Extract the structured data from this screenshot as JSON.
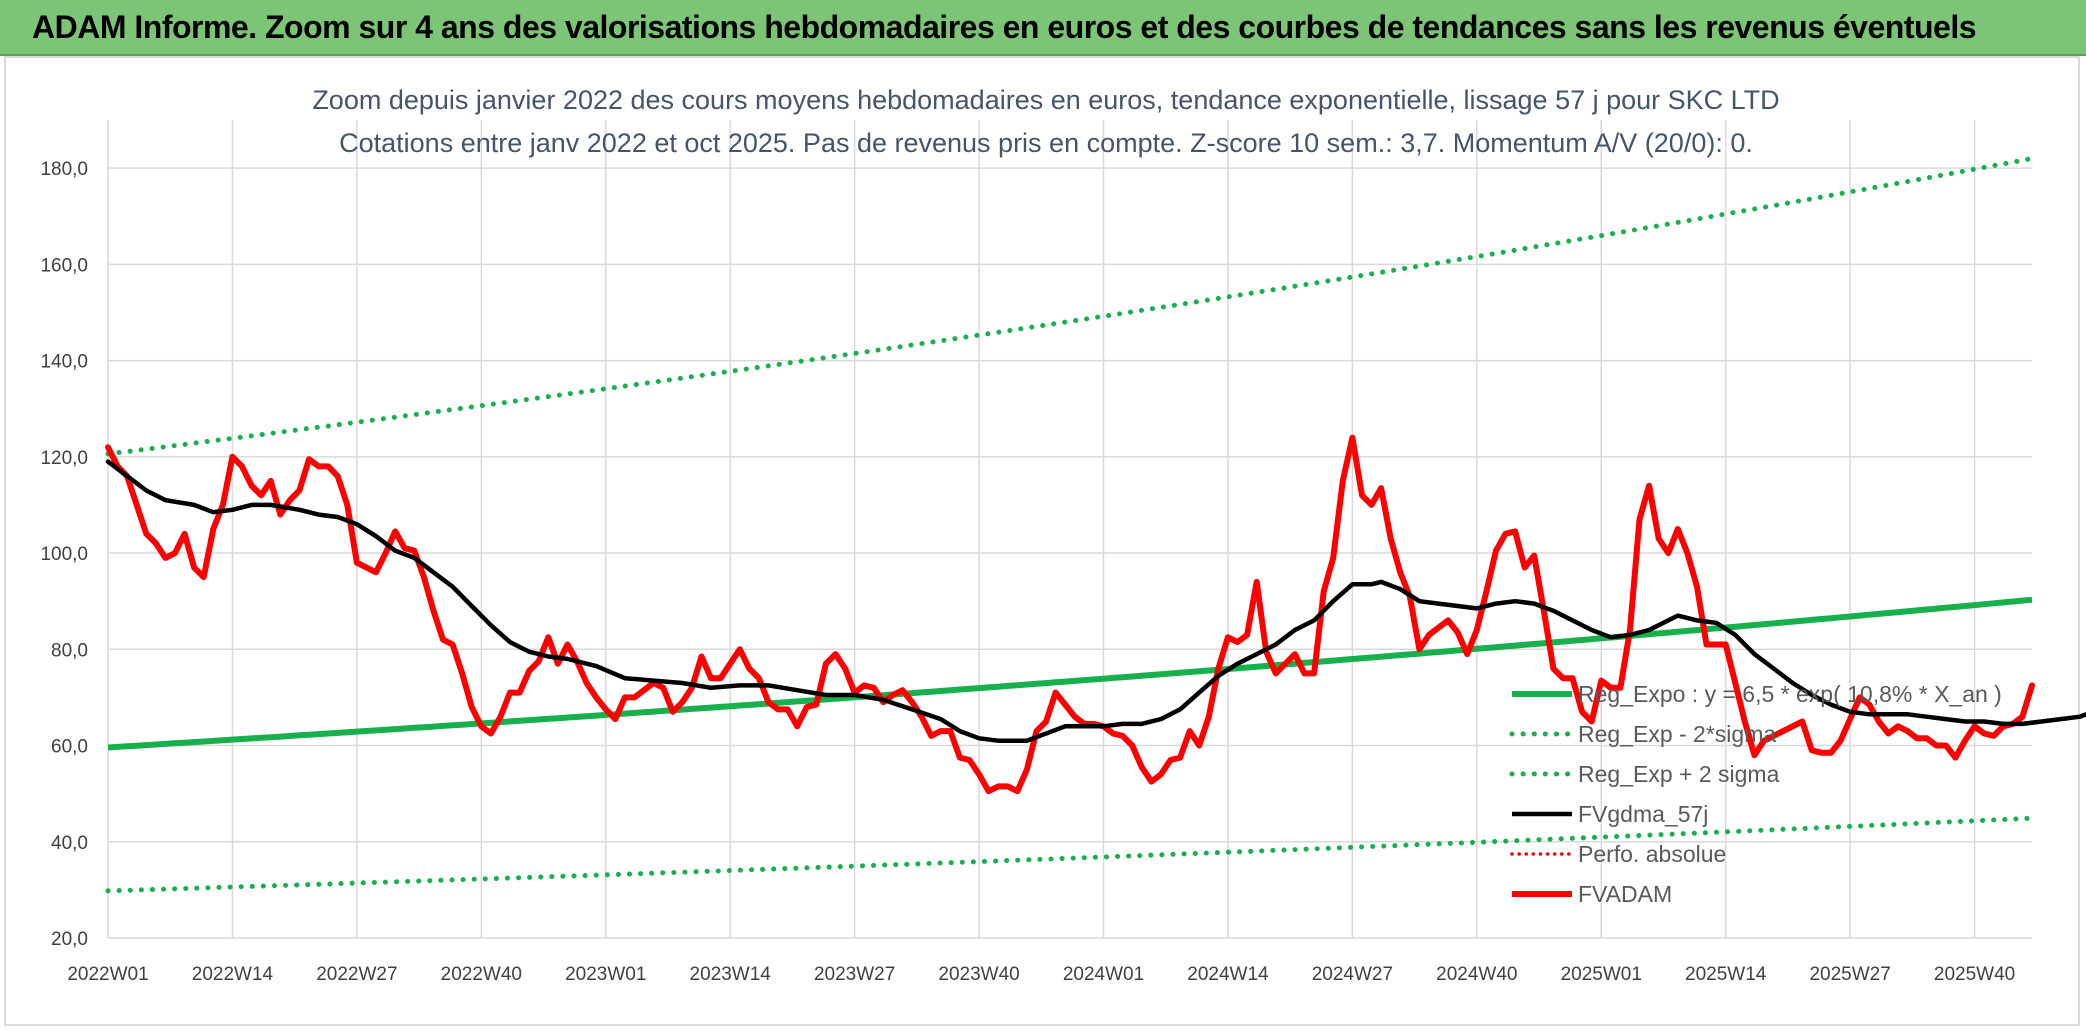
{
  "header": {
    "title": "ADAM Informe. Zoom sur 4 ans des valorisations hebdomadaires en euros et des courbes de tendances sans les revenus éventuels"
  },
  "colors": {
    "banner": "#7cc576",
    "green": "#17b04c",
    "black": "#000000",
    "red": "#ff0000"
  },
  "chart_data": {
    "type": "line",
    "title": "Zoom depuis janvier 2022 des cours moyens hebdomadaires en euros, tendance exponentielle, lissage 57 j pour SKC LTD",
    "subtitle": "Cotations entre janv 2022 et oct 2025. Pas de revenus pris en compte. Z-score 10 sem.: 3,7. Momentum A/V (20/0): 0.",
    "xlabel": "",
    "ylabel": "",
    "ylim": [
      20,
      190
    ],
    "yticks": [
      "20,0",
      "40,0",
      "60,0",
      "80,0",
      "100,0",
      "120,0",
      "140,0",
      "160,0",
      "180,0"
    ],
    "xticks": [
      "2022W01",
      "2022W14",
      "2022W27",
      "2022W40",
      "2023W01",
      "2023W14",
      "2023W27",
      "2023W40",
      "2024W01",
      "2024W14",
      "2024W27",
      "2024W40",
      "2025W01",
      "2025W14",
      "2025W27",
      "2025W40"
    ],
    "x_period": "weekly, 2022W01 to 2025W43",
    "grid": true,
    "legend_position": "bottom-right",
    "series": [
      {
        "name": "Reg_Expo : y = 6,5 * exp( 10,8% *  X_an )",
        "style": "solid-green",
        "y_start": 59.6,
        "y_end": 90.3
      },
      {
        "name": "Reg_Exp - 2*sigma",
        "style": "dotted-green",
        "y_start": 29.8,
        "y_end": 44.9
      },
      {
        "name": "Reg_Exp + 2 sigma",
        "style": "dotted-green",
        "y_start": 120.6,
        "y_end": 182.0
      },
      {
        "name": "FVgdma_57j",
        "style": "solid-black",
        "points": [
          [
            0,
            119
          ],
          [
            2,
            116
          ],
          [
            4,
            113
          ],
          [
            6,
            111
          ],
          [
            9,
            110
          ],
          [
            11,
            108.5
          ],
          [
            13,
            109
          ],
          [
            15,
            110
          ],
          [
            17,
            110
          ],
          [
            20,
            109
          ],
          [
            22,
            108
          ],
          [
            24,
            107.5
          ],
          [
            26,
            106
          ],
          [
            28,
            103.5
          ],
          [
            30,
            100.5
          ],
          [
            32,
            99
          ],
          [
            34,
            96
          ],
          [
            36,
            93
          ],
          [
            38,
            89
          ],
          [
            40,
            85
          ],
          [
            42,
            81.5
          ],
          [
            44,
            79.5
          ],
          [
            46,
            78.5
          ],
          [
            48,
            78
          ],
          [
            51,
            76.5
          ],
          [
            54,
            74
          ],
          [
            57,
            73.5
          ],
          [
            60,
            73
          ],
          [
            63,
            72
          ],
          [
            66,
            72.5
          ],
          [
            69,
            72.5
          ],
          [
            72,
            71.5
          ],
          [
            75,
            70.5
          ],
          [
            78,
            70.5
          ],
          [
            81,
            69.5
          ],
          [
            84,
            67.5
          ],
          [
            87,
            65.5
          ],
          [
            89,
            63
          ],
          [
            91,
            61.5
          ],
          [
            93,
            61
          ],
          [
            95,
            61
          ],
          [
            96,
            61
          ],
          [
            98,
            62.5
          ],
          [
            100,
            64
          ],
          [
            102,
            64
          ],
          [
            104,
            64
          ],
          [
            106,
            64.5
          ],
          [
            108,
            64.5
          ],
          [
            110,
            65.5
          ],
          [
            112,
            67.5
          ],
          [
            114,
            71
          ],
          [
            116,
            74.5
          ],
          [
            118,
            77
          ],
          [
            120,
            79
          ],
          [
            122,
            81
          ],
          [
            124,
            84
          ],
          [
            126,
            86
          ],
          [
            128,
            90
          ],
          [
            130,
            93.5
          ],
          [
            132,
            93.5
          ],
          [
            133,
            94
          ],
          [
            135,
            92.5
          ],
          [
            137,
            90
          ],
          [
            139,
            89.5
          ],
          [
            141,
            89
          ],
          [
            143,
            88.5
          ],
          [
            145,
            89.5
          ],
          [
            147,
            90
          ],
          [
            149,
            89.5
          ],
          [
            151,
            88
          ],
          [
            153,
            86
          ],
          [
            155,
            84
          ],
          [
            157,
            82.5
          ],
          [
            159,
            83
          ],
          [
            161,
            84
          ],
          [
            163,
            86
          ],
          [
            164,
            87
          ],
          [
            166,
            86
          ],
          [
            168,
            85.5
          ],
          [
            170,
            83
          ],
          [
            172,
            79
          ],
          [
            174,
            76
          ],
          [
            176,
            73
          ],
          [
            178,
            70.5
          ],
          [
            180,
            68.5
          ],
          [
            182,
            67
          ],
          [
            184,
            66.5
          ],
          [
            186,
            66.5
          ],
          [
            188,
            66.5
          ],
          [
            190,
            66
          ],
          [
            192,
            65.5
          ],
          [
            194,
            65
          ],
          [
            196,
            65
          ],
          [
            198,
            64.5
          ],
          [
            200,
            64.5
          ],
          [
            202,
            65
          ],
          [
            204,
            65.5
          ],
          [
            206,
            66
          ],
          [
            208,
            67.5
          ],
          [
            210,
            69
          ]
        ]
      },
      {
        "name": "Perfo. absolue",
        "style": "dotted-red",
        "points": []
      },
      {
        "name": "FVADAM",
        "style": "solid-red",
        "points": [
          [
            0,
            122
          ],
          [
            1,
            118
          ],
          [
            2,
            116
          ],
          [
            3,
            110
          ],
          [
            4,
            104
          ],
          [
            5,
            102
          ],
          [
            6,
            99
          ],
          [
            7,
            100
          ],
          [
            8,
            104
          ],
          [
            9,
            97
          ],
          [
            10,
            95
          ],
          [
            11,
            105
          ],
          [
            12,
            110
          ],
          [
            13,
            120
          ],
          [
            14,
            118
          ],
          [
            15,
            114
          ],
          [
            16,
            112
          ],
          [
            17,
            115
          ],
          [
            18,
            108
          ],
          [
            19,
            111
          ],
          [
            20,
            113
          ],
          [
            21,
            119.5
          ],
          [
            22,
            118
          ],
          [
            23,
            118
          ],
          [
            24,
            116
          ],
          [
            25,
            110
          ],
          [
            26,
            98
          ],
          [
            27,
            97
          ],
          [
            28,
            96
          ],
          [
            29,
            100
          ],
          [
            30,
            104.5
          ],
          [
            31,
            101
          ],
          [
            32,
            100.5
          ],
          [
            33,
            95
          ],
          [
            34,
            88
          ],
          [
            35,
            82
          ],
          [
            36,
            81
          ],
          [
            37,
            75
          ],
          [
            38,
            68
          ],
          [
            39,
            64
          ],
          [
            40,
            62.5
          ],
          [
            41,
            66
          ],
          [
            42,
            71
          ],
          [
            43,
            71
          ],
          [
            44,
            75.5
          ],
          [
            45,
            77.5
          ],
          [
            46,
            82.5
          ],
          [
            47,
            77
          ],
          [
            48,
            81
          ],
          [
            49,
            77.5
          ],
          [
            50,
            73
          ],
          [
            51,
            70
          ],
          [
            52,
            67.5
          ],
          [
            53,
            65.5
          ],
          [
            54,
            70
          ],
          [
            55,
            70
          ],
          [
            56,
            71.5
          ],
          [
            57,
            73
          ],
          [
            58,
            72
          ],
          [
            59,
            67
          ],
          [
            60,
            69
          ],
          [
            61,
            72
          ],
          [
            62,
            78.5
          ],
          [
            63,
            74
          ],
          [
            64,
            74
          ],
          [
            65,
            77
          ],
          [
            66,
            80
          ],
          [
            67,
            76
          ],
          [
            68,
            74
          ],
          [
            69,
            69
          ],
          [
            70,
            67.5
          ],
          [
            71,
            67.5
          ],
          [
            72,
            64
          ],
          [
            73,
            68
          ],
          [
            74,
            68.5
          ],
          [
            75,
            77
          ],
          [
            76,
            79
          ],
          [
            77,
            76
          ],
          [
            78,
            71
          ],
          [
            79,
            72.5
          ],
          [
            80,
            72
          ],
          [
            81,
            69
          ],
          [
            82,
            70.5
          ],
          [
            83,
            71.5
          ],
          [
            84,
            69
          ],
          [
            85,
            66
          ],
          [
            86,
            62
          ],
          [
            87,
            63
          ],
          [
            88,
            63
          ],
          [
            89,
            57.5
          ],
          [
            90,
            57
          ],
          [
            91,
            54
          ],
          [
            92,
            50.5
          ],
          [
            93,
            51.5
          ],
          [
            94,
            51.5
          ],
          [
            95,
            50.5
          ],
          [
            96,
            55
          ],
          [
            97,
            63
          ],
          [
            98,
            65
          ],
          [
            99,
            71
          ],
          [
            100,
            68.5
          ],
          [
            101,
            66
          ],
          [
            102,
            64.5
          ],
          [
            103,
            64.5
          ],
          [
            104,
            64
          ],
          [
            105,
            62.5
          ],
          [
            106,
            62
          ],
          [
            107,
            60
          ],
          [
            108,
            55.5
          ],
          [
            109,
            52.5
          ],
          [
            110,
            54
          ],
          [
            111,
            57
          ],
          [
            112,
            57.5
          ],
          [
            113,
            63
          ],
          [
            114,
            60
          ],
          [
            115,
            66
          ],
          [
            116,
            76
          ],
          [
            117,
            82.5
          ],
          [
            118,
            81.5
          ],
          [
            119,
            83
          ],
          [
            120,
            94
          ],
          [
            121,
            79.5
          ],
          [
            122,
            75
          ],
          [
            123,
            77
          ],
          [
            124,
            79
          ],
          [
            125,
            75
          ],
          [
            126,
            75
          ],
          [
            127,
            92
          ],
          [
            128,
            99
          ],
          [
            129,
            115
          ],
          [
            130,
            124
          ],
          [
            131,
            112
          ],
          [
            132,
            110
          ],
          [
            133,
            113.5
          ],
          [
            134,
            103
          ],
          [
            135,
            96
          ],
          [
            136,
            91
          ],
          [
            137,
            80
          ],
          [
            138,
            83
          ],
          [
            139,
            84.5
          ],
          [
            140,
            86
          ],
          [
            141,
            83.5
          ],
          [
            142,
            79
          ],
          [
            143,
            84
          ],
          [
            144,
            92
          ],
          [
            145,
            100.5
          ],
          [
            146,
            104
          ],
          [
            147,
            104.5
          ],
          [
            148,
            97
          ],
          [
            149,
            99.5
          ],
          [
            150,
            88
          ],
          [
            151,
            76
          ],
          [
            152,
            74
          ],
          [
            153,
            74
          ],
          [
            154,
            67
          ],
          [
            155,
            65
          ],
          [
            156,
            73.5
          ],
          [
            157,
            72
          ],
          [
            158,
            72
          ],
          [
            159,
            84
          ],
          [
            160,
            107
          ],
          [
            161,
            114
          ],
          [
            162,
            103
          ],
          [
            163,
            100
          ],
          [
            164,
            105
          ],
          [
            165,
            100
          ],
          [
            166,
            93
          ],
          [
            167,
            81
          ],
          [
            168,
            81
          ],
          [
            169,
            81
          ],
          [
            170,
            73
          ],
          [
            171,
            65
          ],
          [
            172,
            58
          ],
          [
            173,
            61
          ],
          [
            174,
            62
          ],
          [
            175,
            63
          ],
          [
            176,
            64
          ],
          [
            177,
            65
          ],
          [
            178,
            59
          ],
          [
            179,
            58.5
          ],
          [
            180,
            58.5
          ],
          [
            181,
            61
          ],
          [
            182,
            65.5
          ],
          [
            183,
            70
          ],
          [
            184,
            68.5
          ],
          [
            185,
            65
          ],
          [
            186,
            62.5
          ],
          [
            187,
            64
          ],
          [
            188,
            63
          ],
          [
            189,
            61.5
          ],
          [
            190,
            61.5
          ],
          [
            191,
            60
          ],
          [
            192,
            60
          ],
          [
            193,
            57.5
          ],
          [
            194,
            61
          ],
          [
            195,
            64
          ],
          [
            196,
            62.5
          ],
          [
            197,
            62
          ],
          [
            198,
            64
          ],
          [
            199,
            64.5
          ],
          [
            200,
            66
          ],
          [
            201,
            72.5
          ]
        ]
      }
    ]
  }
}
